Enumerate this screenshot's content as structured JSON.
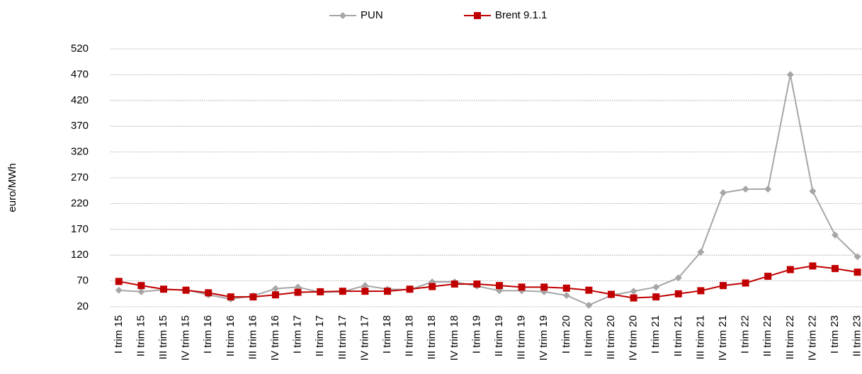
{
  "chart_data": {
    "type": "line",
    "y_label": "euro/MWh",
    "categories": [
      "I trim 15",
      "II trim 15",
      "III trim 15",
      "IV trim 15",
      "I trim 16",
      "II trim 16",
      "III trim 16",
      "IV trim 16",
      "I trim 17",
      "II trim 17",
      "III trim 17",
      "IV trim 17",
      "I trim 18",
      "II trim 18",
      "III trim 18",
      "IV trim 18",
      "I trim 19",
      "II trim 19",
      "III trim 19",
      "IV trim 19",
      "I trim 20",
      "II trim 20",
      "III trim 20",
      "IV trim 20",
      "I trim 21",
      "II trim 21",
      "III trim 21",
      "IV trim 21",
      "I trim 22",
      "II trim 22",
      "III trim 22",
      "IV trim 22",
      "I trim 23",
      "II trim 23"
    ],
    "series": [
      {
        "name": "PUN",
        "color": "#a6a6a6",
        "marker": "diamond",
        "values": [
          52,
          49,
          53,
          53,
          43,
          35,
          41,
          55,
          58,
          48,
          49,
          61,
          54,
          53,
          68,
          68,
          60,
          51,
          51,
          49,
          42,
          23,
          42,
          50,
          58,
          76,
          126,
          241,
          248,
          248,
          470,
          244,
          159,
          117
        ]
      },
      {
        "name": "Brent 9.1.1",
        "color": "#c00000",
        "marker": "square",
        "values": [
          69,
          61,
          54,
          52,
          47,
          39,
          39,
          43,
          48,
          49,
          50,
          50,
          50,
          54,
          59,
          64,
          64,
          61,
          58,
          58,
          56,
          52,
          44,
          37,
          39,
          45,
          51,
          61,
          66,
          79,
          92,
          99,
          94,
          87
        ]
      }
    ],
    "ylim": [
      20,
      520
    ],
    "yticks": [
      20,
      70,
      120,
      170,
      220,
      270,
      320,
      370,
      420,
      470,
      520
    ],
    "grid": true,
    "legend": "top"
  }
}
